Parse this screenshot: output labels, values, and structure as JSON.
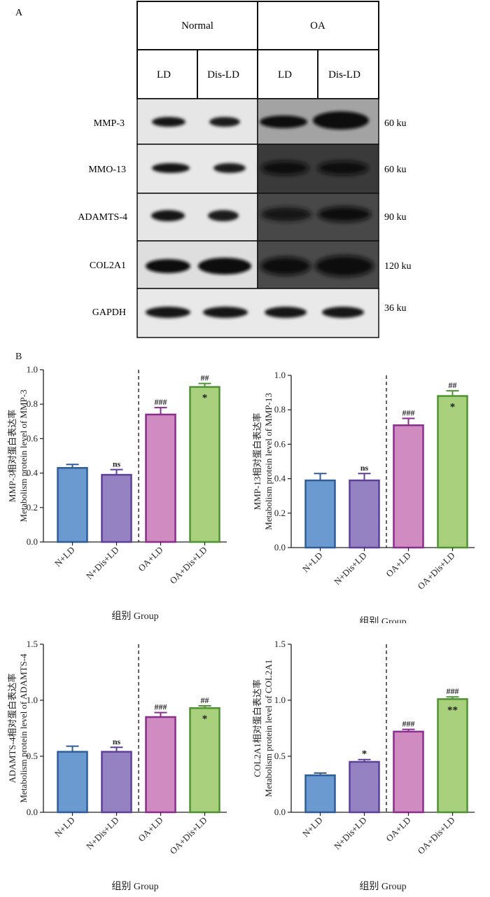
{
  "panel_a": {
    "letter": "A",
    "groups": [
      "Normal",
      "OA"
    ],
    "lanes": [
      "LD",
      "Dis-LD",
      "LD",
      "Dis-LD"
    ],
    "rows": [
      {
        "protein": "MMP-3",
        "weight": "60 ku"
      },
      {
        "protein": "MMO-13",
        "weight": "60 ku"
      },
      {
        "protein": "ADAMTS-4",
        "weight": "90 ku"
      },
      {
        "protein": "COL2A1",
        "weight": "120 ku"
      },
      {
        "protein": "GAPDH",
        "weight": "36 ku"
      }
    ]
  },
  "panel_b": {
    "letter": "B"
  },
  "colors": {
    "fills": [
      "#6a9ad0",
      "#9582c2",
      "#d08cc0",
      "#a9d07c"
    ],
    "strokes": [
      "#2f5d99",
      "#5e3f99",
      "#8a2d8c",
      "#4f9333"
    ]
  },
  "chart_data": [
    {
      "type": "bar",
      "categories": [
        "N+LD",
        "N+Dis+LD",
        "OA+LD",
        "OA+Dis+LD"
      ],
      "values": [
        0.43,
        0.39,
        0.74,
        0.9
      ],
      "errors": [
        0.02,
        0.03,
        0.04,
        0.02
      ],
      "annotations": [
        [
          "",
          ""
        ],
        [
          "ns",
          ""
        ],
        [
          "###",
          ""
        ],
        [
          "##",
          "*"
        ]
      ],
      "ylabel": "MMP-3相对蛋白表达率",
      "ylabel2": "Metabolism protein level of MMP-3",
      "xlabel": "组别 Group",
      "ylim": [
        0,
        1.0
      ],
      "yticks": [
        "0.0",
        "0.2",
        "0.4",
        "0.6",
        "0.8",
        "1.0"
      ],
      "divider": true
    },
    {
      "type": "bar",
      "categories": [
        "N+LD",
        "N+Dis+LD",
        "OA+LD",
        "OA+Dis+LD"
      ],
      "values": [
        0.39,
        0.39,
        0.71,
        0.88
      ],
      "errors": [
        0.04,
        0.04,
        0.04,
        0.03
      ],
      "annotations": [
        [
          "",
          ""
        ],
        [
          "ns",
          ""
        ],
        [
          "###",
          ""
        ],
        [
          "##",
          "*"
        ]
      ],
      "ylabel": "MMP-13相对蛋白表达率",
      "ylabel2": "Metabolism protein level of MMP-13",
      "xlabel": "组别 Group",
      "ylim": [
        0,
        1.0
      ],
      "yticks": [
        "0.0",
        "0.2",
        "0.4",
        "0.6",
        "0.8",
        "1.0"
      ],
      "divider": true
    },
    {
      "type": "bar",
      "categories": [
        "N+LD",
        "N+Dis+LD",
        "OA+LD",
        "OA+Dis+LD"
      ],
      "values": [
        0.54,
        0.54,
        0.85,
        0.93
      ],
      "errors": [
        0.05,
        0.04,
        0.04,
        0.02
      ],
      "annotations": [
        [
          "",
          ""
        ],
        [
          "ns",
          ""
        ],
        [
          "###",
          ""
        ],
        [
          "##",
          "*"
        ]
      ],
      "ylabel": "ADAMTS-4相对蛋白表达率",
      "ylabel2": "Metabolism protein level of ADAMTS-4",
      "xlabel": "组别 Group",
      "ylim": [
        0,
        1.5
      ],
      "yticks": [
        "0.0",
        "0.5",
        "1.0",
        "1.5"
      ],
      "divider": true
    },
    {
      "type": "bar",
      "categories": [
        "N+LD",
        "N+Dis+LD",
        "OA+LD",
        "OA+Dis+LD"
      ],
      "values": [
        0.33,
        0.45,
        0.72,
        1.01
      ],
      "errors": [
        0.02,
        0.02,
        0.02,
        0.02
      ],
      "annotations": [
        [
          "",
          ""
        ],
        [
          "",
          "*"
        ],
        [
          "###",
          ""
        ],
        [
          "###",
          "**"
        ]
      ],
      "ylabel": "COL2A1相对蛋白表达率",
      "ylabel2": "Metabolism protein level of COL2A1",
      "xlabel": "组别 Group",
      "ylim": [
        0,
        1.5
      ],
      "yticks": [
        "0.0",
        "0.5",
        "1.0",
        "1.5"
      ],
      "divider": true
    }
  ]
}
